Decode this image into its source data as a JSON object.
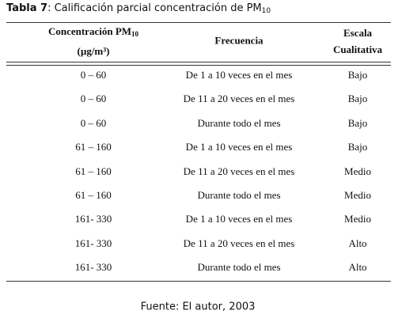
{
  "title": {
    "label": "Tabla 7",
    "text": ": Calificación parcial concentración de PM",
    "sub": "10"
  },
  "table": {
    "header": {
      "concentration": {
        "text": "Concentración PM",
        "sub": "10",
        "unit": "(µg/m³)"
      },
      "frequency": "Frecuencia",
      "scale": {
        "line1": "Escala",
        "line2": "Cualitativa"
      }
    },
    "rows": [
      [
        "0 – 60",
        "De 1 a 10 veces en el mes",
        "Bajo"
      ],
      [
        "0 – 60",
        "De 11 a 20 veces en el mes",
        "Bajo"
      ],
      [
        "0 – 60",
        "Durante todo el mes",
        "Bajo"
      ],
      [
        "61 – 160",
        "De 1 a 10 veces en el mes",
        "Bajo"
      ],
      [
        "61 – 160",
        "De 11 a 20 veces en el mes",
        "Medio"
      ],
      [
        "61 – 160",
        "Durante todo el mes",
        "Medio"
      ],
      [
        "161- 330",
        "De 1 a 10 veces en el mes",
        "Medio"
      ],
      [
        "161- 330",
        "De 11 a 20 veces en el mes",
        "Alto"
      ],
      [
        "161- 330",
        "Durante todo el mes",
        "Alto"
      ]
    ]
  },
  "footer": "Fuente: El autor, 2003"
}
